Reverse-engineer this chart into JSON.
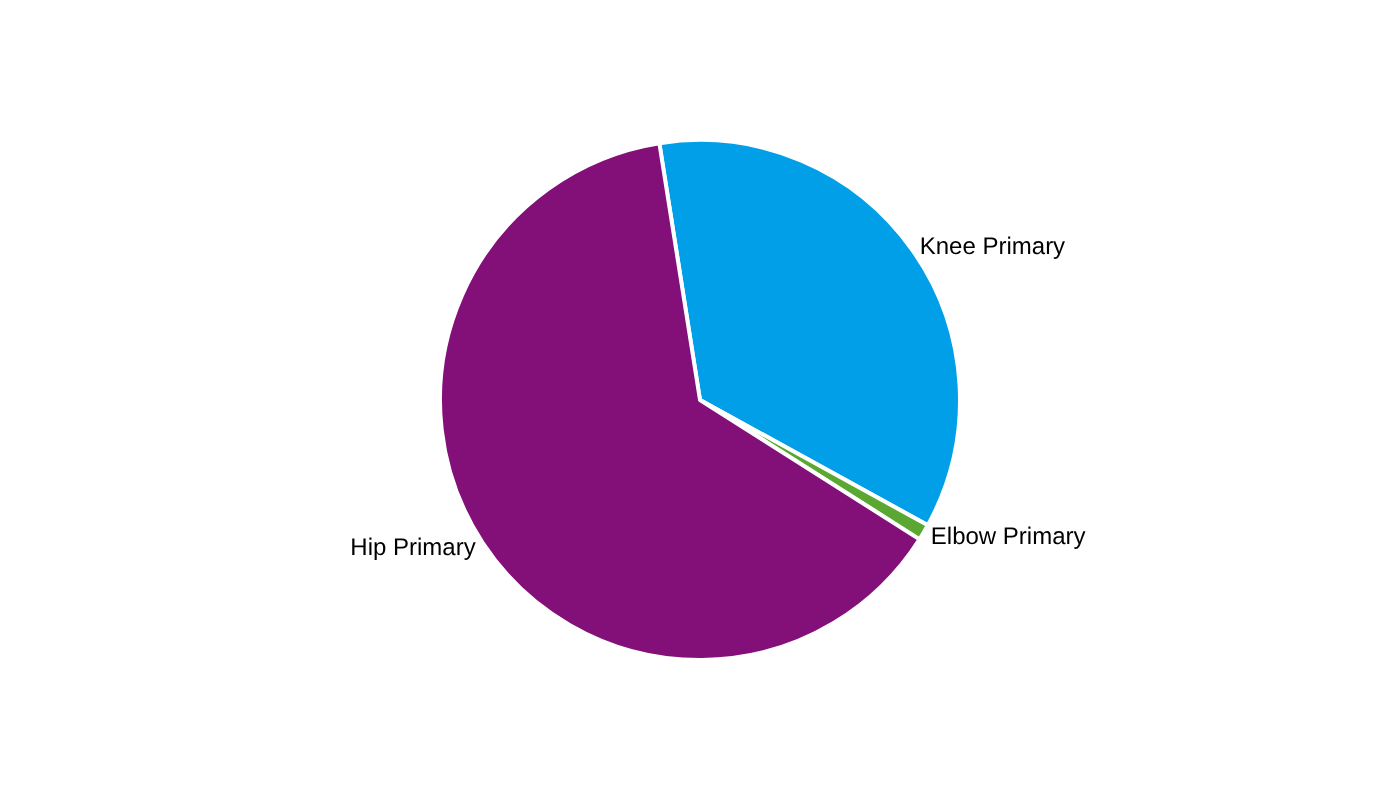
{
  "chart_data": {
    "type": "pie",
    "categories": [
      "Knee Primary",
      "Elbow Primary",
      "Hip Primary"
    ],
    "values": [
      35.5,
      1,
      63.5
    ],
    "colors": [
      "#009fe8",
      "#5aa832",
      "#830f78"
    ],
    "legend": false
  }
}
